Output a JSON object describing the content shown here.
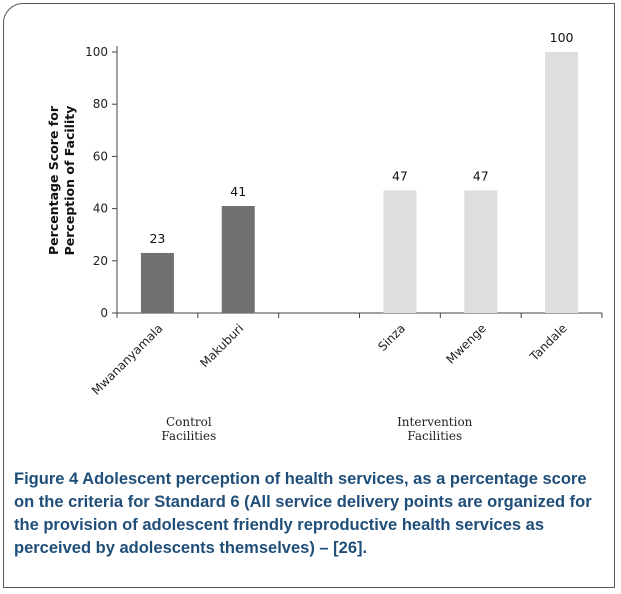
{
  "chart_data": {
    "type": "bar",
    "ylabel": "Percentage Score for Perception of Facility",
    "ylabel_lines": [
      "Percentage Score for",
      "Perception of Facility"
    ],
    "ylim": [
      0,
      100
    ],
    "yticks": [
      0,
      20,
      40,
      60,
      80,
      100
    ],
    "grid": false,
    "categories": [
      "Mwananyamala",
      "Makuburi",
      "",
      "Sinza",
      "Mwenge",
      "Tandale"
    ],
    "values": [
      23,
      41,
      null,
      47,
      47,
      100
    ],
    "data_labels": [
      "23",
      "41",
      "",
      "47",
      "47",
      "100"
    ],
    "bar_colors": [
      "#707070",
      "#707070",
      "",
      "#dedede",
      "#dedede",
      "#dedede"
    ],
    "groups": [
      {
        "label_lines": [
          "Control",
          "Facilities"
        ],
        "categories": [
          "Mwananyamala",
          "Makuburi"
        ]
      },
      {
        "label_lines": [
          "Intervention",
          "Facilities"
        ],
        "categories": [
          "Sinza",
          "Mwenge",
          "Tandale"
        ]
      }
    ]
  },
  "caption": {
    "lead": "Figure 4",
    "text": " Adolescent perception of health services, as a percentage score on the criteria for Standard 6 (All service delivery points are organized for the provision of adolescent friendly reproductive health services as perceived by adolescents themselves) – [26]."
  },
  "colors": {
    "control_bar": "#707070",
    "intervention_bar": "#dedede",
    "caption_text": "#1f4e79"
  }
}
